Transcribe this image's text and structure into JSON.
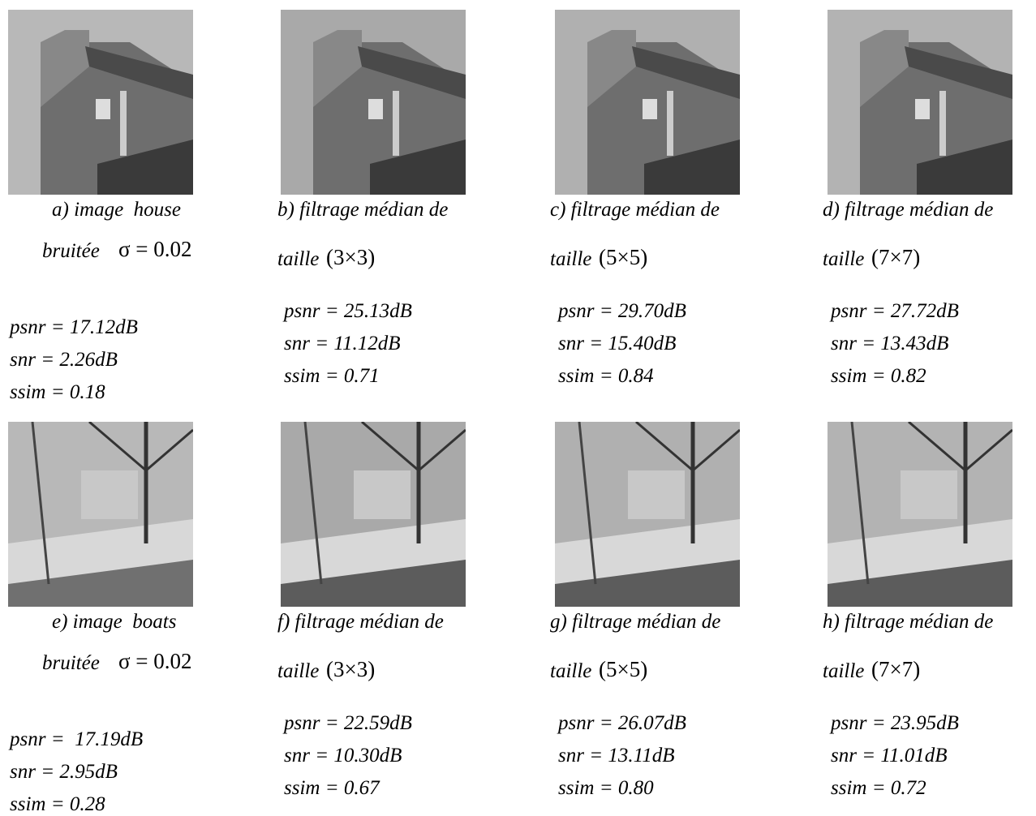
{
  "rows": [
    {
      "panels": [
        {
          "caption": "a) image  house",
          "caption2": "bruitée",
          "formula": "σ = 0.02",
          "psnr": "psnr = 17.12dB",
          "snr": "snr = 2.26dB",
          "ssim": "ssim = 0.18"
        },
        {
          "caption": "b) filtrage médian de",
          "caption2": "taille",
          "formula": "(3×3)",
          "psnr": "psnr = 25.13dB",
          "snr": "snr = 11.12dB",
          "ssim": "ssim = 0.71"
        },
        {
          "caption": "c) filtrage médian de",
          "caption2": "taille",
          "formula": "(5×5)",
          "psnr": "psnr = 29.70dB",
          "snr": "snr = 15.40dB",
          "ssim": "ssim = 0.84"
        },
        {
          "caption": "d) filtrage médian de",
          "caption2": "taille",
          "formula": "(7×7)",
          "psnr": "psnr = 27.72dB",
          "snr": "snr = 13.43dB",
          "ssim": "ssim = 0.82"
        }
      ]
    },
    {
      "panels": [
        {
          "caption": "e) image  boats",
          "caption2": "bruitée",
          "formula": "σ = 0.02",
          "psnr": "psnr =  17.19dB",
          "snr": "snr = 2.95dB",
          "ssim": "ssim = 0.28"
        },
        {
          "caption": "f) filtrage médian de",
          "caption2": "taille",
          "formula": "(3×3)",
          "psnr": "psnr = 22.59dB",
          "snr": "snr = 10.30dB",
          "ssim": "ssim = 0.67"
        },
        {
          "caption": "g) filtrage médian de",
          "caption2": "taille",
          "formula": "(5×5)",
          "psnr": "psnr = 26.07dB",
          "snr": "snr = 13.11dB",
          "ssim": "ssim = 0.80"
        },
        {
          "caption": "h) filtrage médian de",
          "caption2": "taille",
          "formula": "(7×7)",
          "psnr": "psnr = 23.95dB",
          "snr": "snr = 11.01dB",
          "ssim": "ssim = 0.72"
        }
      ]
    }
  ]
}
